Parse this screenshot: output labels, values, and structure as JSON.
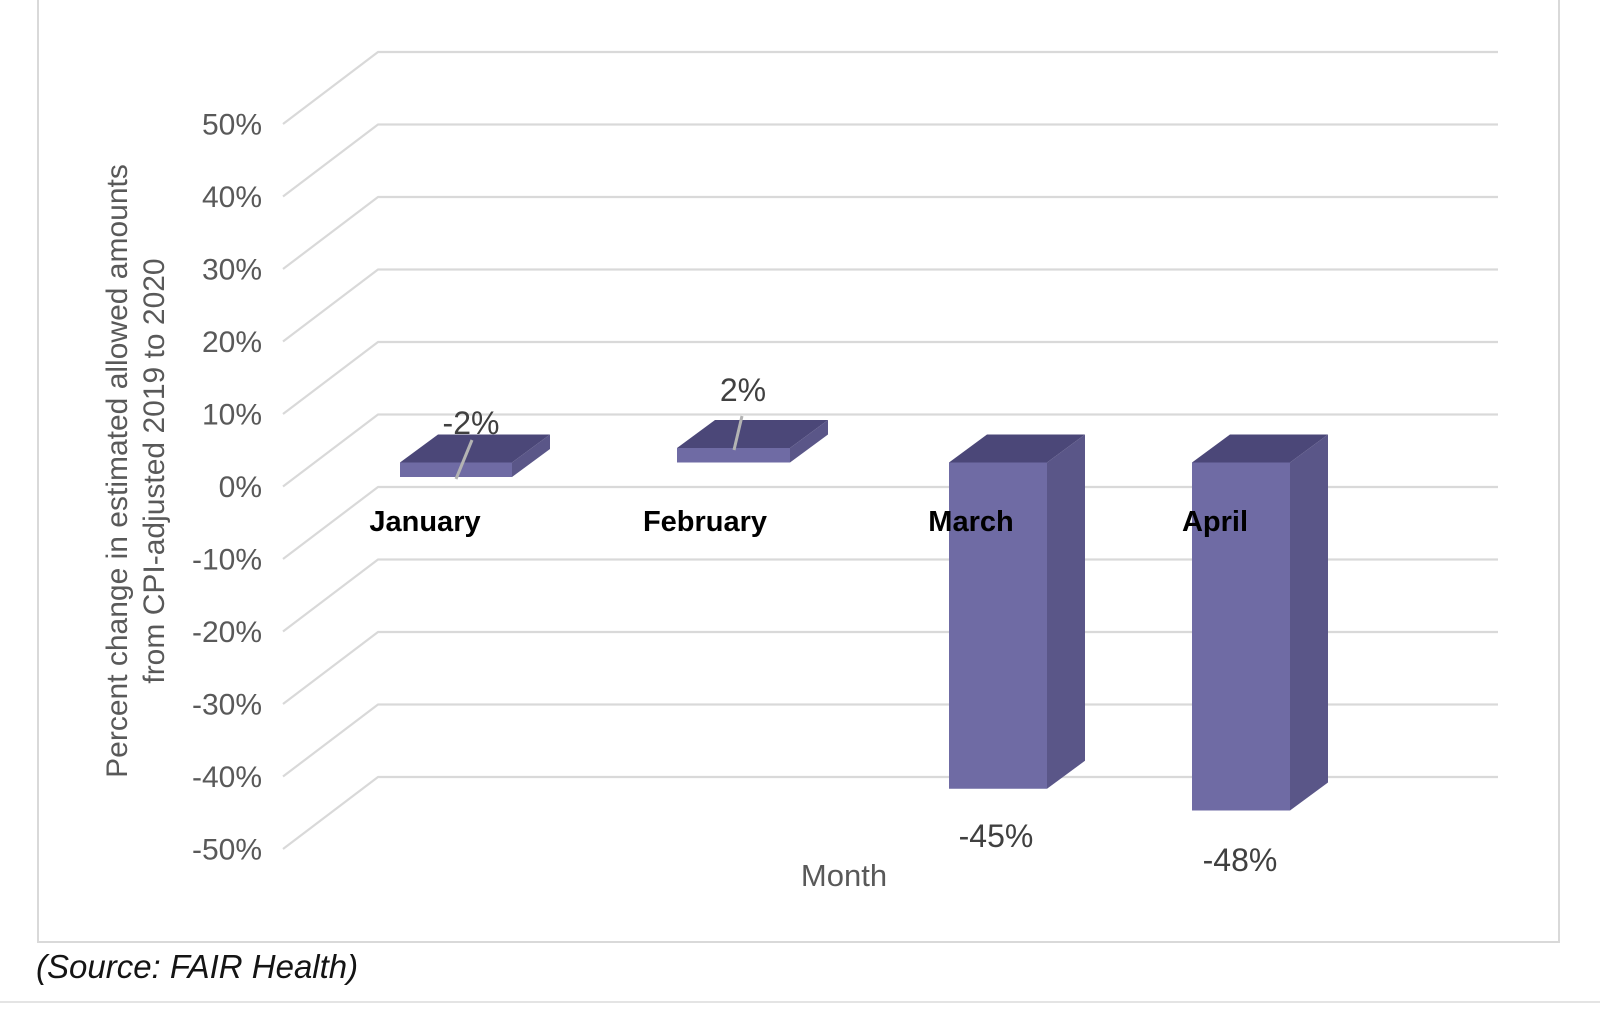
{
  "page": {
    "source_note": "(Source: FAIR Health)"
  },
  "chart_data": {
    "type": "bar",
    "style": "3d-column",
    "title": "",
    "categories": [
      "January",
      "February",
      "March",
      "April"
    ],
    "values": [
      -2,
      2,
      -45,
      -48
    ],
    "data_labels": [
      "-2%",
      "2%",
      "-45%",
      "-48%"
    ],
    "xlabel": "Month",
    "ylabel": "Percent change in estimated allowed amounts from CPI-adjusted 2019 to 2020",
    "ylabel_line1": "Percent change in estimated allowed amounts",
    "ylabel_line2": "from CPI-adjusted 2019 to 2020",
    "ylim": [
      -50,
      50
    ],
    "ytick_values": [
      50,
      40,
      30,
      20,
      10,
      0,
      -10,
      -20,
      -30,
      -40,
      -50
    ],
    "ytick_labels": [
      "50%",
      "40%",
      "30%",
      "20%",
      "10%",
      "0%",
      "-10%",
      "-20%",
      "-30%",
      "-40%",
      "-50%"
    ],
    "grid": true,
    "legend": false,
    "colors": {
      "bar_front": "#6F6BA4",
      "bar_side": "#5A5688",
      "bar_top": "#4B4778",
      "gridline": "#d9d9d9",
      "tick_text": "#595959",
      "axis_title_text": "#595959",
      "category_text": "#000000",
      "data_label_text": "#404040",
      "leader_line": "#b3b3b3",
      "chart_border": "#d9d9d9"
    }
  }
}
